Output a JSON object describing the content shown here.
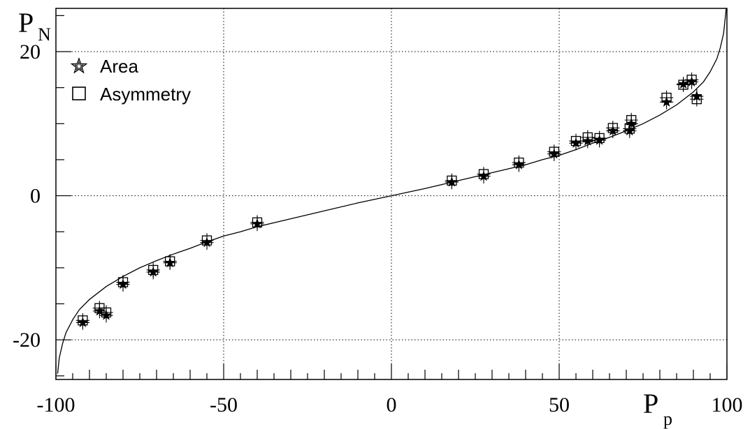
{
  "chart_data": {
    "type": "scatter",
    "xlabel": "P",
    "xlabel_sub": "p",
    "ylabel": "P",
    "ylabel_sub": "N",
    "xlim": [
      -100,
      100
    ],
    "ylim": [
      -25.5,
      26
    ],
    "x_ticks": [
      -100,
      -50,
      0,
      50,
      100
    ],
    "y_ticks": [
      -20,
      0,
      20
    ],
    "grid": true,
    "legend_position": "top-left",
    "series": [
      {
        "name": "Area",
        "marker": "star",
        "points": [
          [
            -92,
            -17.6
          ],
          [
            -87,
            -16
          ],
          [
            -85,
            -16.6
          ],
          [
            -80,
            -12.3
          ],
          [
            -71,
            -10.6
          ],
          [
            -66,
            -9.3
          ],
          [
            -55,
            -6.5
          ],
          [
            -40,
            -3.9
          ],
          [
            18,
            1.9
          ],
          [
            27.5,
            2.7
          ],
          [
            38,
            4.3
          ],
          [
            48.5,
            5.8
          ],
          [
            55,
            7.3
          ],
          [
            58.5,
            7.6
          ],
          [
            62,
            7.7
          ],
          [
            66,
            9
          ],
          [
            71,
            9
          ],
          [
            71.5,
            10
          ],
          [
            82,
            13
          ],
          [
            87,
            15.5
          ],
          [
            89.5,
            15.8
          ],
          [
            91,
            13.8
          ]
        ],
        "x_err": 2,
        "y_err": 1
      },
      {
        "name": "Asymmetry",
        "marker": "square",
        "points": [
          [
            -92,
            -17.3
          ],
          [
            -87,
            -15.6
          ],
          [
            -85,
            -16.2
          ],
          [
            -80,
            -12
          ],
          [
            -71,
            -10.3
          ],
          [
            -66,
            -9.1
          ],
          [
            -55,
            -6.2
          ],
          [
            -40,
            -3.7
          ],
          [
            18,
            2.1
          ],
          [
            27.5,
            3
          ],
          [
            38,
            4.6
          ],
          [
            48.5,
            6.1
          ],
          [
            55,
            7.6
          ],
          [
            58.5,
            8.1
          ],
          [
            62,
            8
          ],
          [
            66,
            9.4
          ],
          [
            71,
            9.3
          ],
          [
            71.5,
            10.5
          ],
          [
            82,
            13.6
          ],
          [
            87,
            15.4
          ],
          [
            89.5,
            16.1
          ],
          [
            91,
            13.4
          ]
        ],
        "x_err": 2,
        "y_err": 1
      }
    ],
    "curve": {
      "name": "",
      "points": [
        [
          -99.5,
          -24.7
        ],
        [
          -99,
          -22.5
        ],
        [
          -98,
          -20.5
        ],
        [
          -97,
          -19
        ],
        [
          -95,
          -17.2
        ],
        [
          -93,
          -15.8
        ],
        [
          -90,
          -14.4
        ],
        [
          -85,
          -12.6
        ],
        [
          -80,
          -11.2
        ],
        [
          -75,
          -10
        ],
        [
          -70,
          -9
        ],
        [
          -65,
          -8.1
        ],
        [
          -60,
          -7.3
        ],
        [
          -55,
          -6.4
        ],
        [
          -50,
          -5.6
        ],
        [
          -45,
          -5
        ],
        [
          -40,
          -4.3
        ],
        [
          -30,
          -3.2
        ],
        [
          -20,
          -2.1
        ],
        [
          -10,
          -1
        ],
        [
          0,
          0
        ],
        [
          10,
          1
        ],
        [
          20,
          2.1
        ],
        [
          30,
          3.2
        ],
        [
          40,
          4.3
        ],
        [
          45,
          5
        ],
        [
          50,
          5.6
        ],
        [
          55,
          6.4
        ],
        [
          60,
          7.3
        ],
        [
          65,
          8.1
        ],
        [
          70,
          9
        ],
        [
          75,
          10
        ],
        [
          80,
          11.2
        ],
        [
          85,
          12.6
        ],
        [
          90,
          14.4
        ],
        [
          93,
          15.8
        ],
        [
          95,
          17.2
        ],
        [
          97,
          19
        ],
        [
          98,
          20.5
        ],
        [
          99,
          22.5
        ],
        [
          99.5,
          24.7
        ],
        [
          99.8,
          26
        ]
      ]
    }
  }
}
